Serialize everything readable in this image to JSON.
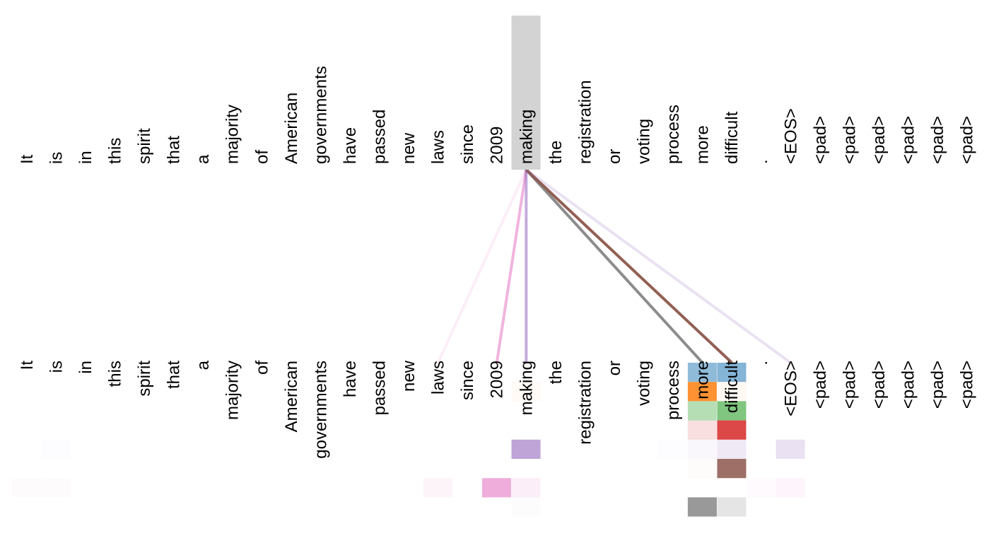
{
  "tokens": [
    "It",
    "is",
    "in",
    "this",
    "spirit",
    "that",
    "a",
    "majority",
    "of",
    "American",
    "governments",
    "have",
    "passed",
    "new",
    "laws",
    "since",
    "2009",
    "making",
    "the",
    "registration",
    "or",
    "voting",
    "process",
    "more",
    "difficult",
    ".",
    "<EOS>",
    "<pad>",
    "<pad>",
    "<pad>",
    "<pad>",
    "<pad>",
    "<pad>"
  ],
  "selected_index": 17,
  "highlight_color": "#d3d3d3",
  "head_colors": [
    "#1f77b4",
    "#ff7f0e",
    "#2ca02c",
    "#d62728",
    "#9467bd",
    "#8c564b",
    "#e377c2",
    "#7f7f7f"
  ],
  "attention": [
    {
      "head": 0,
      "cells": [
        {
          "i": 23,
          "w": 0.5
        },
        {
          "i": 24,
          "w": 0.55
        }
      ]
    },
    {
      "head": 1,
      "cells": [
        {
          "i": 17,
          "w": 0.04
        },
        {
          "i": 23,
          "w": 0.85
        },
        {
          "i": 24,
          "w": 0.05
        }
      ]
    },
    {
      "head": 2,
      "cells": [
        {
          "i": 23,
          "w": 0.35
        },
        {
          "i": 24,
          "w": 0.6
        }
      ]
    },
    {
      "head": 3,
      "cells": [
        {
          "i": 23,
          "w": 0.15
        },
        {
          "i": 24,
          "w": 0.85
        }
      ]
    },
    {
      "head": 4,
      "cells": [
        {
          "i": 1,
          "w": 0.02
        },
        {
          "i": 17,
          "w": 0.6
        },
        {
          "i": 22,
          "w": 0.02
        },
        {
          "i": 23,
          "w": 0.05
        },
        {
          "i": 24,
          "w": 0.15
        },
        {
          "i": 26,
          "w": 0.2
        }
      ]
    },
    {
      "head": 5,
      "cells": [
        {
          "i": 23,
          "w": 0.02
        },
        {
          "i": 24,
          "w": 0.85
        }
      ]
    },
    {
      "head": 6,
      "cells": [
        {
          "i": 0,
          "w": 0.03
        },
        {
          "i": 1,
          "w": 0.03
        },
        {
          "i": 14,
          "w": 0.08
        },
        {
          "i": 16,
          "w": 0.6
        },
        {
          "i": 17,
          "w": 0.12
        },
        {
          "i": 25,
          "w": 0.04
        },
        {
          "i": 26,
          "w": 0.07
        }
      ]
    },
    {
      "head": 7,
      "cells": [
        {
          "i": 17,
          "w": 0.02
        },
        {
          "i": 23,
          "w": 0.8
        },
        {
          "i": 24,
          "w": 0.2
        }
      ]
    }
  ],
  "edges": [
    {
      "to": 14,
      "color": "#e377c2",
      "opacity": 0.12
    },
    {
      "to": 16,
      "color": "#e377c2",
      "opacity": 0.55
    },
    {
      "to": 17,
      "color": "#9467bd",
      "opacity": 0.55
    },
    {
      "to": 23,
      "color": "#7f7f7f",
      "opacity": 0.9
    },
    {
      "to": 24,
      "color": "#8c564b",
      "opacity": 0.95
    },
    {
      "to": 26,
      "color": "#9467bd",
      "opacity": 0.2
    }
  ]
}
